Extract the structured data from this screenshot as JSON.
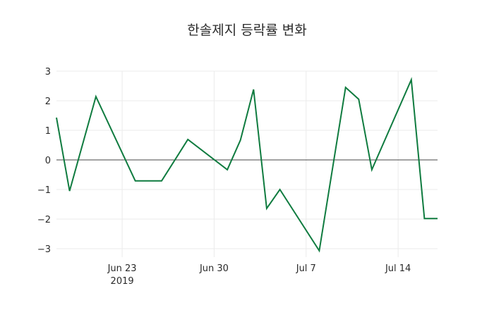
{
  "chart_data": {
    "type": "line",
    "title": "한솔제지 등락률 변화",
    "xlabel": "",
    "ylabel": "",
    "x": [
      "2019-06-18",
      "2019-06-19",
      "2019-06-21",
      "2019-06-24",
      "2019-06-26",
      "2019-06-28",
      "2019-07-01",
      "2019-07-02",
      "2019-07-03",
      "2019-07-04",
      "2019-07-05",
      "2019-07-08",
      "2019-07-10",
      "2019-07-11",
      "2019-07-12",
      "2019-07-15",
      "2019-07-16",
      "2019-07-17"
    ],
    "series": [
      {
        "name": "등락률",
        "color": "#0f7b3f",
        "values": [
          1.43,
          -1.05,
          2.14,
          -0.71,
          -0.71,
          0.69,
          -0.33,
          0.67,
          2.38,
          -1.64,
          -1.0,
          -3.07,
          2.45,
          2.05,
          -0.33,
          2.71,
          -1.98,
          -1.98
        ]
      }
    ],
    "x_ticks": [
      {
        "label": "Jun 23",
        "sub": "2019",
        "date": "2019-06-23"
      },
      {
        "label": "Jun 30",
        "sub": "",
        "date": "2019-06-30"
      },
      {
        "label": "Jul 7",
        "sub": "",
        "date": "2019-07-07"
      },
      {
        "label": "Jul 14",
        "sub": "",
        "date": "2019-07-14"
      }
    ],
    "y_ticks": [
      3,
      2,
      1,
      0,
      -1,
      -2,
      -3
    ],
    "y_tick_labels": [
      "3",
      "2",
      "1",
      "0",
      "−1",
      "−2",
      "−3"
    ],
    "ylim": [
      -3.3,
      3.3
    ],
    "xlim": [
      "2019-06-18",
      "2019-07-17"
    ],
    "grid": true,
    "legend": "none",
    "zero_line": true
  }
}
